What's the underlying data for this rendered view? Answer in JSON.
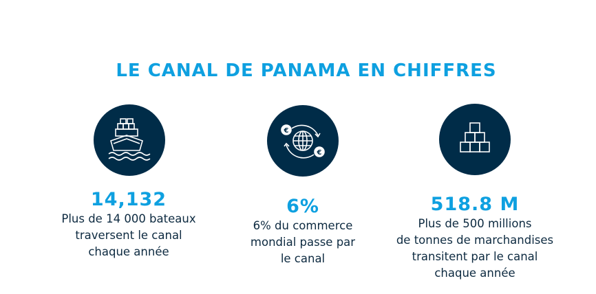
{
  "title": "LE CANAL DE PANAMA EN CHIFFRES",
  "colors": {
    "accent": "#0ea0e0",
    "circle": "#002c48",
    "text": "#0d2a40"
  },
  "stats": [
    {
      "icon": "cargo-ship-icon",
      "value": "14,132",
      "description": "Plus de 14 000 bateaux\ntraversent le canal\nchaque année"
    },
    {
      "icon": "globe-euro-exchange-icon",
      "value": "6%",
      "description": "6% du commerce\nmondial passe par\nle canal"
    },
    {
      "icon": "stacked-boxes-icon",
      "value": "518.8 M",
      "description": "Plus de 500 millions\nde tonnes de marchandises\ntransitent par le canal\nchaque année"
    }
  ]
}
